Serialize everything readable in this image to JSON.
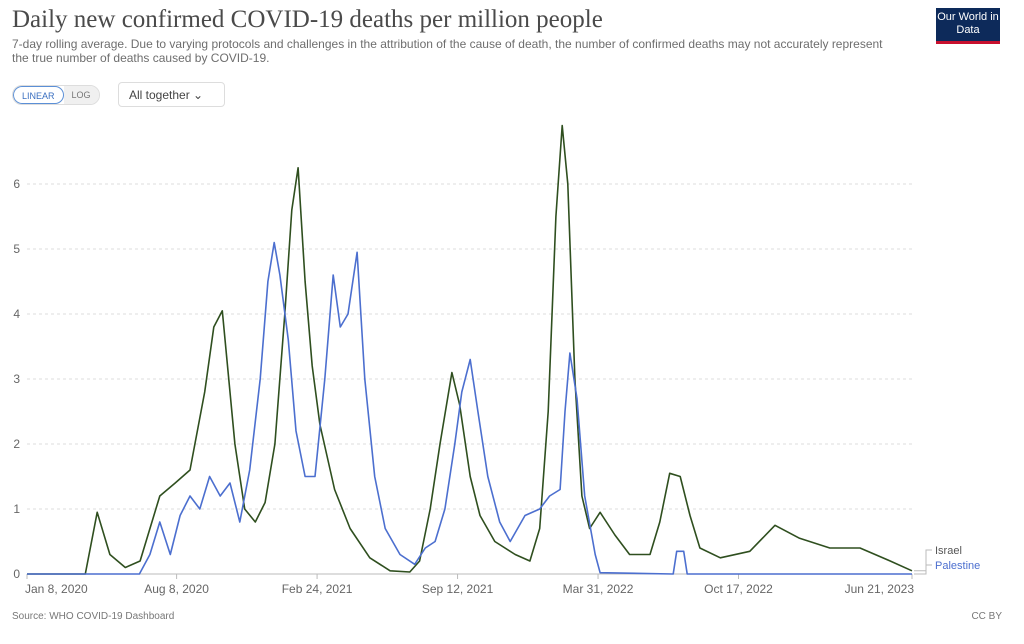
{
  "header": {
    "title": "Daily new confirmed COVID-19 deaths per million people",
    "subtitle": "7-day rolling average. Due to varying protocols and challenges in the attribution of the cause of death, the number of confirmed deaths may not accurately represent the true number of deaths caused by COVID-19.",
    "logo": "Our World in Data"
  },
  "controls": {
    "linear": "LINEAR",
    "log": "LOG",
    "mode": "All together"
  },
  "footer": {
    "source": "Source: WHO COVID-19 Dashboard",
    "license": "CC BY"
  },
  "chart_data": {
    "type": "line",
    "title": "Daily new confirmed COVID-19 deaths per million people",
    "ylim": [
      0,
      6.9
    ],
    "yticks": [
      "0",
      "1",
      "2",
      "3",
      "4",
      "5",
      "6"
    ],
    "xlim": [
      "2020-01-08",
      "2023-06-21"
    ],
    "xticks": [
      {
        "label": "Jan 8, 2020",
        "date": "2020-01-08"
      },
      {
        "label": "Aug 8, 2020",
        "date": "2020-08-08"
      },
      {
        "label": "Feb 24, 2021",
        "date": "2021-02-24"
      },
      {
        "label": "Sep 12, 2021",
        "date": "2021-09-12"
      },
      {
        "label": "Mar 31, 2022",
        "date": "2022-03-31"
      },
      {
        "label": "Oct 17, 2022",
        "date": "2022-10-17"
      },
      {
        "label": "Jun 21, 2023",
        "date": "2023-06-21"
      }
    ],
    "grid": true,
    "legend": "right",
    "series": [
      {
        "name": "Israel",
        "color": "#2f4f1f",
        "points": [
          [
            "2020-01-08",
            0
          ],
          [
            "2020-03-31",
            0
          ],
          [
            "2020-04-17",
            0.95
          ],
          [
            "2020-05-05",
            0.3
          ],
          [
            "2020-05-27",
            0.1
          ],
          [
            "2020-06-17",
            0.2
          ],
          [
            "2020-07-15",
            1.2
          ],
          [
            "2020-08-06",
            1.4
          ],
          [
            "2020-08-27",
            1.6
          ],
          [
            "2020-09-17",
            2.8
          ],
          [
            "2020-09-30",
            3.8
          ],
          [
            "2020-10-12",
            4.05
          ],
          [
            "2020-10-30",
            2.0
          ],
          [
            "2020-11-13",
            1.0
          ],
          [
            "2020-11-28",
            0.8
          ],
          [
            "2020-12-12",
            1.1
          ],
          [
            "2020-12-26",
            2.0
          ],
          [
            "2021-01-09",
            4.0
          ],
          [
            "2021-01-19",
            5.6
          ],
          [
            "2021-01-28",
            6.25
          ],
          [
            "2021-02-07",
            4.5
          ],
          [
            "2021-02-17",
            3.2
          ],
          [
            "2021-02-28",
            2.3
          ],
          [
            "2021-03-21",
            1.3
          ],
          [
            "2021-04-12",
            0.7
          ],
          [
            "2021-05-10",
            0.25
          ],
          [
            "2021-06-08",
            0.05
          ],
          [
            "2021-07-06",
            0.03
          ],
          [
            "2021-07-20",
            0.2
          ],
          [
            "2021-08-04",
            1.0
          ],
          [
            "2021-08-18",
            2.0
          ],
          [
            "2021-09-04",
            3.1
          ],
          [
            "2021-09-15",
            2.6
          ],
          [
            "2021-09-30",
            1.5
          ],
          [
            "2021-10-14",
            0.9
          ],
          [
            "2021-11-04",
            0.5
          ],
          [
            "2021-12-03",
            0.3
          ],
          [
            "2021-12-24",
            0.2
          ],
          [
            "2022-01-07",
            0.7
          ],
          [
            "2022-01-19",
            2.5
          ],
          [
            "2022-01-30",
            5.5
          ],
          [
            "2022-02-08",
            6.9
          ],
          [
            "2022-02-16",
            6.0
          ],
          [
            "2022-02-26",
            3.0
          ],
          [
            "2022-03-08",
            1.2
          ],
          [
            "2022-03-19",
            0.7
          ],
          [
            "2022-04-03",
            0.95
          ],
          [
            "2022-04-24",
            0.6
          ],
          [
            "2022-05-15",
            0.3
          ],
          [
            "2022-06-13",
            0.3
          ],
          [
            "2022-06-27",
            0.8
          ],
          [
            "2022-07-11",
            1.55
          ],
          [
            "2022-07-26",
            1.5
          ],
          [
            "2022-08-09",
            0.9
          ],
          [
            "2022-08-23",
            0.4
          ],
          [
            "2022-09-21",
            0.25
          ],
          [
            "2022-11-02",
            0.35
          ],
          [
            "2022-12-08",
            0.75
          ],
          [
            "2023-01-12",
            0.55
          ],
          [
            "2023-02-24",
            0.4
          ],
          [
            "2023-04-08",
            0.4
          ],
          [
            "2023-05-21",
            0.2
          ],
          [
            "2023-06-21",
            0.05
          ]
        ]
      },
      {
        "name": "Palestine",
        "color": "#4c6fcf",
        "points": [
          [
            "2020-01-08",
            0
          ],
          [
            "2020-06-16",
            0
          ],
          [
            "2020-07-01",
            0.3
          ],
          [
            "2020-07-15",
            0.8
          ],
          [
            "2020-07-30",
            0.3
          ],
          [
            "2020-08-13",
            0.9
          ],
          [
            "2020-08-27",
            1.2
          ],
          [
            "2020-09-10",
            1.0
          ],
          [
            "2020-09-24",
            1.5
          ],
          [
            "2020-10-09",
            1.2
          ],
          [
            "2020-10-23",
            1.4
          ],
          [
            "2020-11-06",
            0.8
          ],
          [
            "2020-11-20",
            1.6
          ],
          [
            "2020-12-05",
            3.0
          ],
          [
            "2020-12-16",
            4.5
          ],
          [
            "2020-12-25",
            5.1
          ],
          [
            "2021-01-02",
            4.6
          ],
          [
            "2021-01-14",
            3.6
          ],
          [
            "2021-01-25",
            2.2
          ],
          [
            "2021-02-07",
            1.5
          ],
          [
            "2021-02-21",
            1.5
          ],
          [
            "2021-03-07",
            3.0
          ],
          [
            "2021-03-19",
            4.6
          ],
          [
            "2021-03-29",
            3.8
          ],
          [
            "2021-04-09",
            4.0
          ],
          [
            "2021-04-22",
            4.95
          ],
          [
            "2021-05-03",
            3.0
          ],
          [
            "2021-05-17",
            1.5
          ],
          [
            "2021-06-01",
            0.7
          ],
          [
            "2021-06-22",
            0.3
          ],
          [
            "2021-07-13",
            0.15
          ],
          [
            "2021-07-28",
            0.4
          ],
          [
            "2021-08-11",
            0.5
          ],
          [
            "2021-08-25",
            1.0
          ],
          [
            "2021-09-08",
            2.0
          ],
          [
            "2021-09-18",
            2.8
          ],
          [
            "2021-09-30",
            3.3
          ],
          [
            "2021-10-11",
            2.5
          ],
          [
            "2021-10-25",
            1.5
          ],
          [
            "2021-11-11",
            0.8
          ],
          [
            "2021-11-26",
            0.5
          ],
          [
            "2021-12-17",
            0.9
          ],
          [
            "2022-01-07",
            1.0
          ],
          [
            "2022-01-21",
            1.2
          ],
          [
            "2022-02-05",
            1.3
          ],
          [
            "2022-02-12",
            2.5
          ],
          [
            "2022-02-19",
            3.4
          ],
          [
            "2022-03-01",
            2.7
          ],
          [
            "2022-03-12",
            1.2
          ],
          [
            "2022-03-27",
            0.3
          ],
          [
            "2022-04-03",
            0.02
          ],
          [
            "2022-07-16",
            0
          ],
          [
            "2022-07-21",
            0.35
          ],
          [
            "2022-07-31",
            0.35
          ],
          [
            "2022-08-05",
            0
          ],
          [
            "2023-06-21",
            0
          ]
        ]
      }
    ]
  }
}
